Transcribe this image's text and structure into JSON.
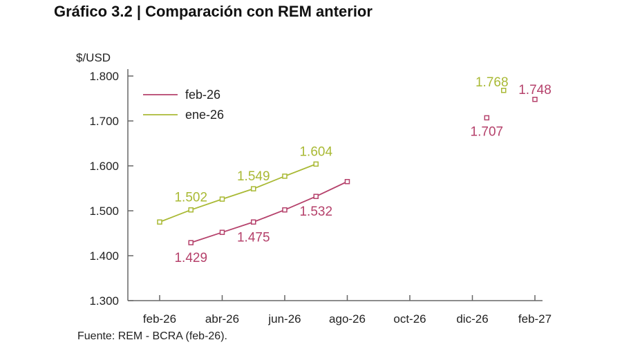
{
  "title": "Gráfico 3.2 | Comparación con REM anterior",
  "source": "Fuente: REM - BCRA (feb-26).",
  "chart_data": {
    "type": "line",
    "title": "Gráfico 3.2 | Comparación con REM anterior",
    "ylabel": "$/USD",
    "ylim": [
      1300,
      1800
    ],
    "yticks": [
      1300,
      1400,
      1500,
      1600,
      1700,
      1800
    ],
    "ytick_labels": [
      "1.300",
      "1.400",
      "1.500",
      "1.600",
      "1.700",
      "1.800"
    ],
    "months": [
      "feb-26",
      "mar-26",
      "abr-26",
      "may-26",
      "jun-26",
      "jul-26",
      "ago-26",
      "sep-26",
      "oct-26",
      "nov-26",
      "dic-26",
      "ene-27",
      "feb-27"
    ],
    "xtick_labels": [
      "feb-26",
      "abr-26",
      "jun-26",
      "ago-26",
      "oct-26",
      "dic-26",
      "feb-27"
    ],
    "grid": false,
    "legend_position": "top-left",
    "series": [
      {
        "name": "feb-26",
        "color": "#b5416b",
        "line": [
          [
            "mar-26",
            1429
          ],
          [
            "abr-26",
            1452
          ],
          [
            "may-26",
            1475
          ],
          [
            "jun-26",
            1502
          ],
          [
            "jul-26",
            1532
          ],
          [
            "ago-26",
            1565
          ]
        ],
        "points": [
          [
            "dic-26",
            1707
          ],
          [
            "feb-27",
            1748
          ]
        ],
        "labels": [
          [
            "mar-26",
            1429,
            "1.429"
          ],
          [
            "may-26",
            1475,
            "1.475"
          ],
          [
            "jul-26",
            1532,
            "1.532"
          ],
          [
            "dic-26",
            1707,
            "1.707"
          ],
          [
            "feb-27",
            1748,
            "1.748"
          ]
        ]
      },
      {
        "name": "ene-26",
        "color": "#a9b934",
        "line": [
          [
            "feb-26",
            1475
          ],
          [
            "mar-26",
            1502
          ],
          [
            "abr-26",
            1526
          ],
          [
            "may-26",
            1549
          ],
          [
            "jun-26",
            1577
          ],
          [
            "jul-26",
            1604
          ]
        ],
        "points": [
          [
            "ene-27",
            1768
          ]
        ],
        "labels": [
          [
            "mar-26",
            1502,
            "1.502"
          ],
          [
            "may-26",
            1549,
            "1.549"
          ],
          [
            "jul-26",
            1604,
            "1.604"
          ],
          [
            "ene-27",
            1768,
            "1.768"
          ]
        ]
      }
    ]
  }
}
